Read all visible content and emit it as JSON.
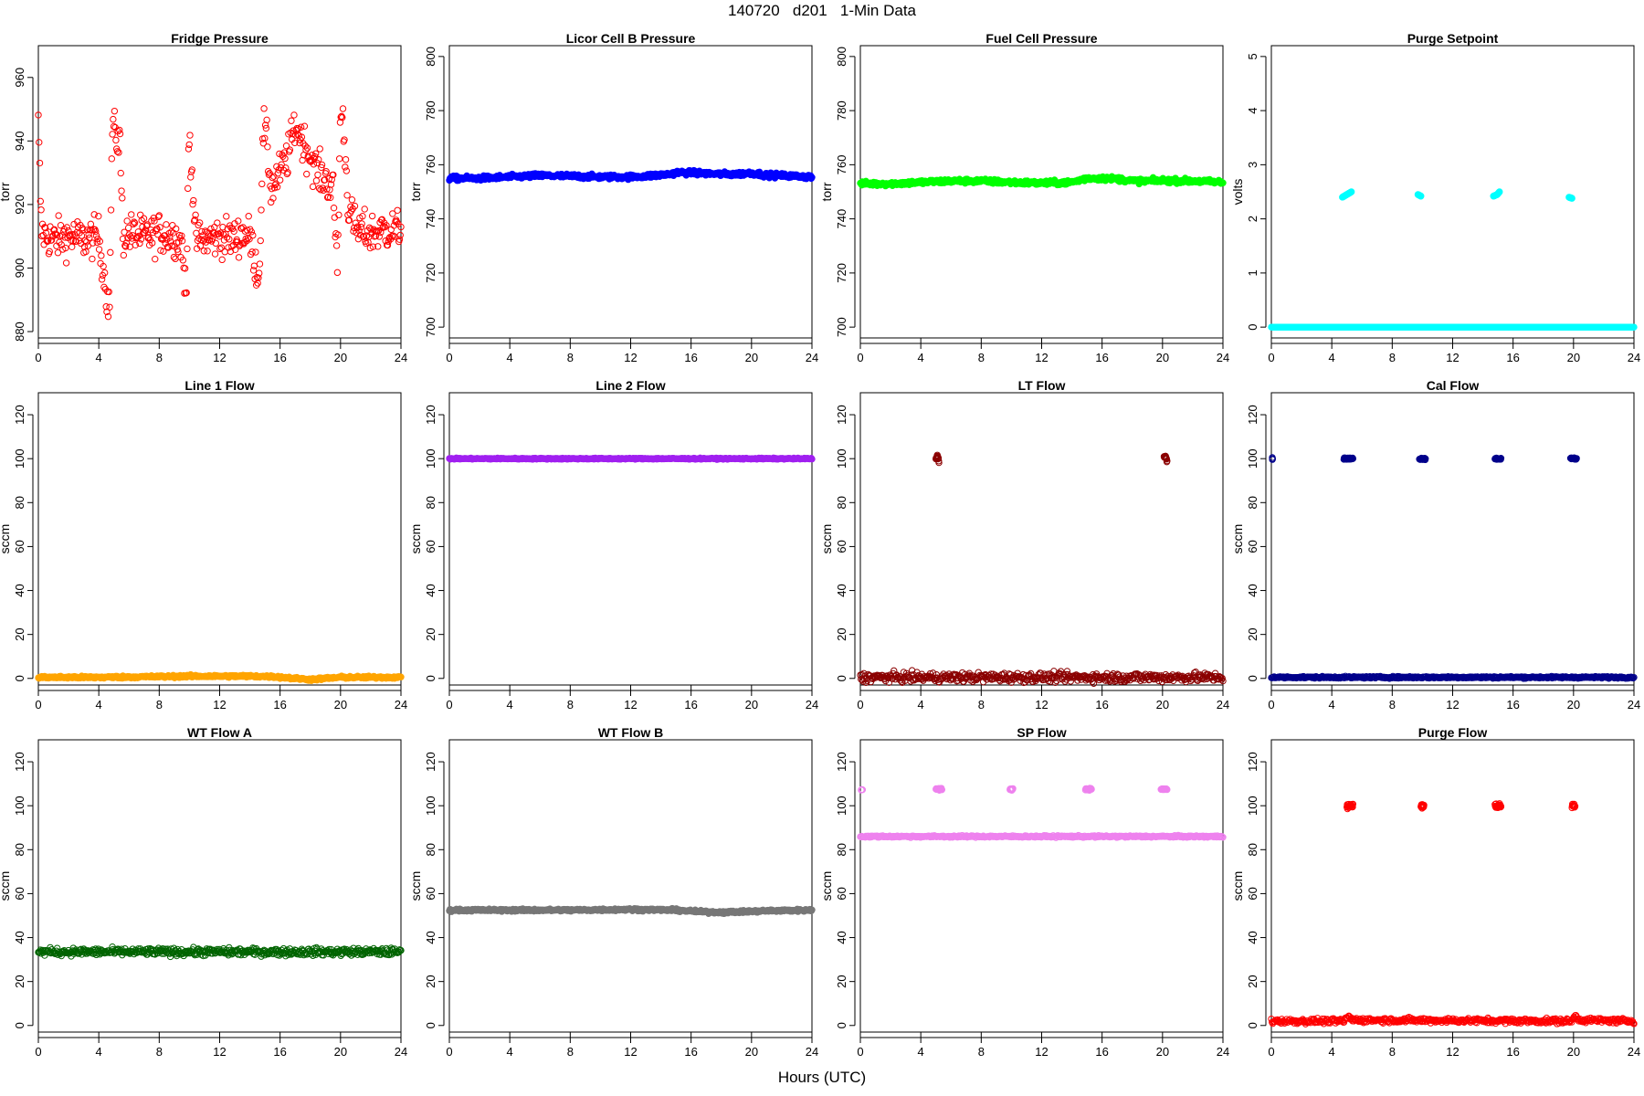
{
  "page": {
    "title": "140720   d201   1-Min Data",
    "xlabel": "Hours (UTC)"
  },
  "chart_data": [
    {
      "type": "scatter",
      "title": "Fridge Pressure",
      "ylabel": "torr",
      "color": "#ff0000",
      "marker": "open-circle",
      "xlim": [
        0,
        24
      ],
      "ylim": [
        878,
        970
      ],
      "xticks": [
        0,
        4,
        8,
        12,
        16,
        20,
        24
      ],
      "yticks": [
        880,
        900,
        920,
        940,
        960
      ],
      "noise": 4.5,
      "series": [
        {
          "x": [
            0,
            0.2,
            0.5,
            1,
            2,
            3,
            4,
            4.7,
            4.9,
            5.0,
            5.2,
            5.4,
            5.6,
            6,
            7,
            8,
            9,
            9.5,
            9.8,
            9.95,
            10.1,
            10.4,
            11,
            12,
            13,
            13.5,
            14,
            14.6,
            14.9,
            15.1,
            15.4,
            16,
            16.5,
            17,
            17.5,
            18,
            18.5,
            19,
            19.5,
            19.8,
            20,
            20.2,
            20.5,
            21,
            22,
            23,
            24
          ],
          "y": [
            945,
            912,
            910,
            909,
            910,
            909,
            910,
            886,
            945,
            943,
            941,
            940,
            910,
            911,
            910,
            911,
            910,
            908,
            889,
            942,
            936,
            909,
            909,
            910,
            909,
            911,
            910,
            896,
            945,
            940,
            925,
            930,
            935,
            945,
            940,
            935,
            930,
            928,
            925,
            900,
            950,
            945,
            920,
            912,
            911,
            912,
            912
          ]
        }
      ]
    },
    {
      "type": "scatter",
      "title": "Licor Cell B Pressure",
      "ylabel": "torr",
      "color": "#0000ff",
      "marker": "filled-band",
      "xlim": [
        0,
        24
      ],
      "ylim": [
        696,
        804
      ],
      "xticks": [
        0,
        4,
        8,
        12,
        16,
        20,
        24
      ],
      "yticks": [
        700,
        720,
        740,
        760,
        780,
        800
      ],
      "noise": 0.6,
      "series": [
        {
          "x": [
            0,
            2,
            4,
            6,
            8,
            10,
            12,
            13.5,
            14.5,
            15.2,
            16,
            17,
            18,
            19,
            20,
            21,
            22,
            24
          ],
          "y": [
            755,
            755,
            755.5,
            756,
            755.8,
            755.5,
            755.5,
            756,
            756.5,
            757.2,
            757,
            756.8,
            756.5,
            756.5,
            757,
            756.2,
            756,
            755.5
          ]
        }
      ]
    },
    {
      "type": "scatter",
      "title": "Fuel Cell Pressure",
      "ylabel": "torr",
      "color": "#00ff00",
      "marker": "filled-band",
      "xlim": [
        0,
        24
      ],
      "ylim": [
        696,
        804
      ],
      "xticks": [
        0,
        4,
        8,
        12,
        16,
        20,
        24
      ],
      "yticks": [
        700,
        720,
        740,
        760,
        780,
        800
      ],
      "noise": 0.6,
      "series": [
        {
          "x": [
            0,
            2,
            4,
            6,
            8,
            10,
            12,
            14,
            15,
            16,
            17,
            18,
            19,
            20,
            22,
            24
          ],
          "y": [
            753,
            753,
            753.5,
            754,
            754,
            753.5,
            753.2,
            753.5,
            755,
            755,
            754.8,
            754,
            754,
            754.2,
            754,
            753.5
          ]
        }
      ]
    },
    {
      "type": "scatter",
      "title": "Purge Setpoint",
      "ylabel": "volts",
      "color": "#00ffff",
      "marker": "filled-band",
      "xlim": [
        0,
        24
      ],
      "ylim": [
        -0.2,
        5.2
      ],
      "xticks": [
        0,
        4,
        8,
        12,
        16,
        20,
        24
      ],
      "yticks": [
        0,
        1,
        2,
        3,
        4,
        5
      ],
      "noise": 0,
      "series": [
        {
          "x": [
            0,
            24
          ],
          "y": [
            0,
            0
          ]
        },
        {
          "x": [
            4.7,
            5.0,
            5.3
          ],
          "y": [
            2.4,
            2.45,
            2.5
          ]
        },
        {
          "x": [
            9.7,
            9.9
          ],
          "y": [
            2.45,
            2.42
          ]
        },
        {
          "x": [
            14.7,
            14.95,
            15.1
          ],
          "y": [
            2.42,
            2.45,
            2.5
          ]
        },
        {
          "x": [
            19.7,
            19.9
          ],
          "y": [
            2.4,
            2.38
          ]
        }
      ]
    },
    {
      "type": "scatter",
      "title": "Line 1 Flow",
      "ylabel": "sccm",
      "color": "#ffa500",
      "marker": "filled-band",
      "xlim": [
        0,
        24
      ],
      "ylim": [
        -3,
        130
      ],
      "xticks": [
        0,
        4,
        8,
        12,
        16,
        20,
        24
      ],
      "yticks": [
        0,
        20,
        40,
        60,
        80,
        100,
        120
      ],
      "noise": 0.4,
      "series": [
        {
          "x": [
            0,
            4,
            8,
            10,
            12,
            14,
            15.5,
            17,
            18,
            19,
            20,
            22,
            24
          ],
          "y": [
            0.5,
            0.5,
            0.8,
            1.0,
            1.0,
            1.0,
            0.8,
            0,
            -0.5,
            0,
            0.5,
            0.5,
            0.5
          ]
        }
      ]
    },
    {
      "type": "scatter",
      "title": "Line 2 Flow",
      "ylabel": "sccm",
      "color": "#a020f0",
      "marker": "filled-band",
      "xlim": [
        0,
        24
      ],
      "ylim": [
        -3,
        130
      ],
      "xticks": [
        0,
        4,
        8,
        12,
        16,
        20,
        24
      ],
      "yticks": [
        0,
        20,
        40,
        60,
        80,
        100,
        120
      ],
      "noise": 0.2,
      "series": [
        {
          "x": [
            0,
            24
          ],
          "y": [
            100,
            100
          ]
        }
      ]
    },
    {
      "type": "scatter",
      "title": "LT Flow",
      "ylabel": "sccm",
      "color": "#8b0000",
      "marker": "open-circle",
      "xlim": [
        0,
        24
      ],
      "ylim": [
        -3,
        130
      ],
      "xticks": [
        0,
        4,
        8,
        12,
        16,
        20,
        24
      ],
      "yticks": [
        0,
        20,
        40,
        60,
        80,
        100,
        120
      ],
      "noise": 1.5,
      "series": [
        {
          "x": [
            0,
            24
          ],
          "y": [
            0.5,
            0.5
          ]
        },
        {
          "x": [
            5.0,
            5.1,
            5.2
          ],
          "y": [
            100,
            101,
            99
          ]
        },
        {
          "x": [
            20.1,
            20.2,
            20.3
          ],
          "y": [
            100,
            101,
            99
          ]
        }
      ]
    },
    {
      "type": "scatter",
      "title": "Cal Flow",
      "ylabel": "sccm",
      "color": "#00008b",
      "marker": "open-circle",
      "xlim": [
        0,
        24
      ],
      "ylim": [
        -3,
        130
      ],
      "xticks": [
        0,
        4,
        8,
        12,
        16,
        20,
        24
      ],
      "yticks": [
        0,
        20,
        40,
        60,
        80,
        100,
        120
      ],
      "noise": 0.3,
      "series": [
        {
          "x": [
            0,
            24
          ],
          "y": [
            0.5,
            0.5
          ]
        },
        {
          "x": [
            0.1
          ],
          "y": [
            100
          ]
        },
        {
          "x": [
            4.8,
            5.0,
            5.2,
            5.4
          ],
          "y": [
            100,
            100,
            100,
            100
          ]
        },
        {
          "x": [
            9.8,
            10.0,
            10.2
          ],
          "y": [
            100,
            100,
            100
          ]
        },
        {
          "x": [
            14.8,
            15.0,
            15.2
          ],
          "y": [
            100,
            100,
            100
          ]
        },
        {
          "x": [
            19.8,
            20.0,
            20.2
          ],
          "y": [
            100,
            100,
            100
          ]
        }
      ]
    },
    {
      "type": "scatter",
      "title": "WT Flow A",
      "ylabel": "sccm",
      "color": "#006400",
      "marker": "open-circle",
      "xlim": [
        0,
        24
      ],
      "ylim": [
        -3,
        130
      ],
      "xticks": [
        0,
        4,
        8,
        12,
        16,
        20,
        24
      ],
      "yticks": [
        0,
        20,
        40,
        60,
        80,
        100,
        120
      ],
      "noise": 1.2,
      "series": [
        {
          "x": [
            0,
            24
          ],
          "y": [
            33.5,
            33.5
          ]
        }
      ]
    },
    {
      "type": "scatter",
      "title": "WT Flow B",
      "ylabel": "sccm",
      "color": "#777777",
      "marker": "filled-band",
      "xlim": [
        0,
        24
      ],
      "ylim": [
        -3,
        130
      ],
      "xticks": [
        0,
        4,
        8,
        12,
        16,
        20,
        24
      ],
      "yticks": [
        0,
        20,
        40,
        60,
        80,
        100,
        120
      ],
      "noise": 0.4,
      "series": [
        {
          "x": [
            0,
            8,
            12,
            15,
            16.5,
            18,
            19.5,
            21,
            24
          ],
          "y": [
            52.5,
            52.5,
            52.8,
            52.5,
            51.8,
            51.5,
            51.8,
            52.2,
            52.5
          ]
        }
      ]
    },
    {
      "type": "scatter",
      "title": "SP Flow",
      "ylabel": "sccm",
      "color": "#ee82ee",
      "marker": "open-circle",
      "xlim": [
        0,
        24
      ],
      "ylim": [
        -3,
        130
      ],
      "xticks": [
        0,
        4,
        8,
        12,
        16,
        20,
        24
      ],
      "yticks": [
        0,
        20,
        40,
        60,
        80,
        100,
        120
      ],
      "noise": 0.3,
      "series": [
        {
          "x": [
            0,
            24
          ],
          "y": [
            86,
            86
          ]
        },
        {
          "x": [
            0.1
          ],
          "y": [
            107.5
          ]
        },
        {
          "x": [
            5.0,
            5.2,
            5.4
          ],
          "y": [
            107.5,
            107.5,
            107.5
          ]
        },
        {
          "x": [
            9.9,
            10.1
          ],
          "y": [
            107.5,
            107.5
          ]
        },
        {
          "x": [
            14.9,
            15.1,
            15.3
          ],
          "y": [
            107.5,
            107.5,
            107.5
          ]
        },
        {
          "x": [
            19.9,
            20.1,
            20.3
          ],
          "y": [
            107.5,
            107.5,
            107.5
          ]
        }
      ]
    },
    {
      "type": "scatter",
      "title": "Purge Flow",
      "ylabel": "sccm",
      "color": "#ff0000",
      "marker": "open-circle",
      "xlim": [
        0,
        24
      ],
      "ylim": [
        -3,
        130
      ],
      "xticks": [
        0,
        4,
        8,
        12,
        16,
        20,
        24
      ],
      "yticks": [
        0,
        20,
        40,
        60,
        80,
        100,
        120
      ],
      "noise": 0.8,
      "series": [
        {
          "x": [
            0,
            4.8,
            5.1,
            5.4,
            19.9,
            20.1,
            20.4,
            24
          ],
          "y": [
            2,
            2,
            4,
            2.5,
            2,
            4.5,
            2.5,
            2
          ]
        },
        {
          "x": [
            5.0,
            5.2,
            5.4
          ],
          "y": [
            100,
            100,
            100
          ]
        },
        {
          "x": [
            9.9,
            10.1
          ],
          "y": [
            100,
            100
          ]
        },
        {
          "x": [
            14.8,
            15.0,
            15.2
          ],
          "y": [
            100,
            100,
            100
          ]
        },
        {
          "x": [
            19.9,
            20.1
          ],
          "y": [
            100,
            100
          ]
        }
      ]
    }
  ]
}
